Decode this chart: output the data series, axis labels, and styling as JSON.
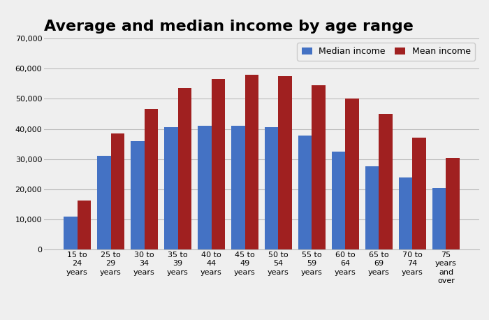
{
  "title": "Average and median income by age range",
  "categories": [
    "15 to\n24\nyears",
    "25 to\n29\nyears",
    "30 to\n34\nyears",
    "35 to\n39\nyears",
    "40 to\n44\nyears",
    "45 to\n49\nyears",
    "50 to\n54\nyears",
    "55 to\n59\nyears",
    "60 to\n64\nyears",
    "65 to\n69\nyears",
    "70 to\n74\nyears",
    "75\nyears\nand\nover"
  ],
  "median_income": [
    11000,
    31000,
    36000,
    40500,
    41000,
    41000,
    40500,
    37800,
    32500,
    27500,
    23800,
    20500
  ],
  "mean_income": [
    16200,
    38500,
    46500,
    53500,
    56500,
    58000,
    57500,
    54500,
    50000,
    45000,
    37000,
    30500
  ],
  "median_color": "#4472c4",
  "mean_color": "#a02020",
  "background_color": "#efefef",
  "plot_background": "#efefef",
  "ylim": [
    0,
    70000
  ],
  "yticks": [
    0,
    10000,
    20000,
    30000,
    40000,
    50000,
    60000,
    70000
  ],
  "legend_labels": [
    "Median income",
    "Mean income"
  ],
  "title_fontsize": 16,
  "tick_fontsize": 8,
  "legend_fontsize": 9
}
